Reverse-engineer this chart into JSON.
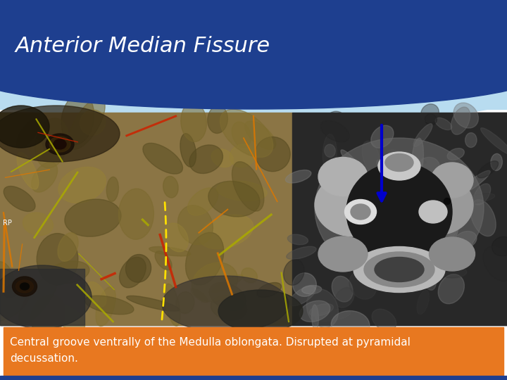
{
  "title": "Anterior Median Fissure",
  "title_color": "#FFFFFF",
  "title_fontsize": 22,
  "title_bg_color": "#1E3F8F",
  "light_blue_color": "#B8DCF0",
  "caption_text": "Central groove ventrally of the Medulla oblongata. Disrupted at pyramidal\ndecussation.",
  "caption_bg_color": "#E87820",
  "caption_text_color": "#FFFFFF",
  "caption_fontsize": 11,
  "bottom_bar_color": "#1E3F8F",
  "background_color": "#FFFFFF",
  "arrow_color": "#0000CC",
  "dashed_line_color": "#FFE000",
  "slide_bg": "#F0F0F0"
}
